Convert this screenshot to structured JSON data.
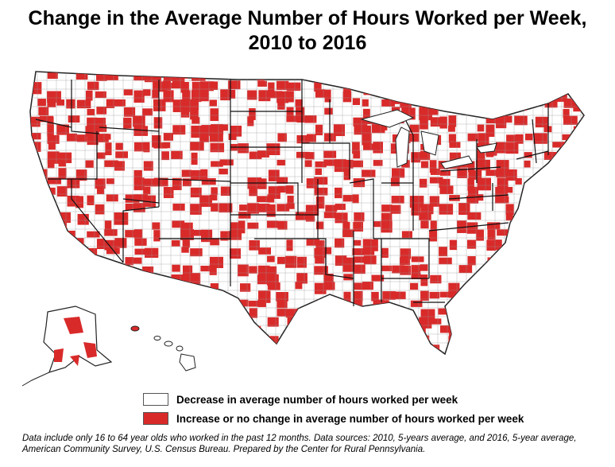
{
  "title_line1": "Change in the Average Number of Hours Worked per Week,",
  "title_line2": "2010 to 2016",
  "legend": [
    {
      "label": "Decrease in average number of hours worked per week",
      "color": "#ffffff"
    },
    {
      "label": "Increase or no change in average number of hours worked per week",
      "color": "#d92a2a"
    }
  ],
  "note_line1": "Data include only 16 to 64 year olds who worked in the past 12 months. Data sources: 2010, 5-years average, and 2016, 5-year average,",
  "note_line2": "American Community Survey, U.S. Census Bureau. Prepared by the Center for Rural Pennsylvania.",
  "colors": {
    "increase": "#d92a2a",
    "decrease": "#ffffff",
    "border": "#333333"
  }
}
